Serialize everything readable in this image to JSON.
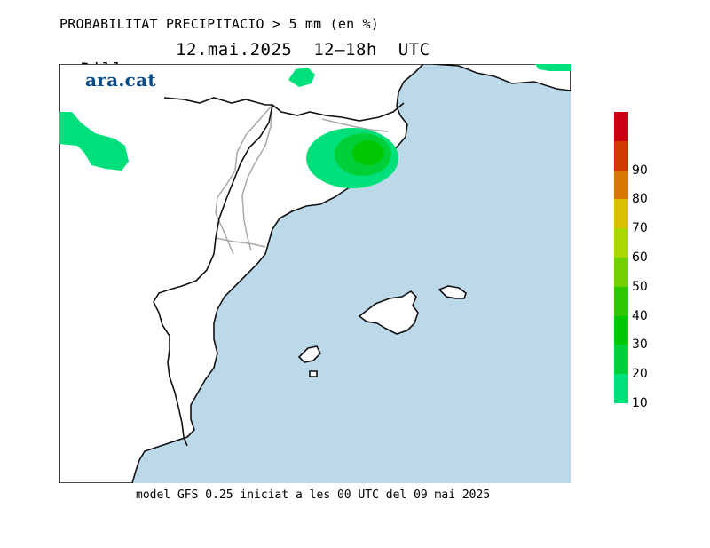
{
  "header": {
    "title": "PROBABILITAT PRECIPITACIO > 5 mm (en %)",
    "day": "Dilluns",
    "date_range": "12.mai.2025  12–18h  UTC"
  },
  "logo": {
    "text": "ara.cat"
  },
  "footer": {
    "text": "model GFS 0.25 iniciat a les 00 UTC del 09 mai 2025"
  },
  "map": {
    "sea_color": "#bcd9ea",
    "land_color": "#ffffff",
    "region": "Catalunya, País Valencià i Illes Balears"
  },
  "colorbar": {
    "ticks": [
      "10",
      "20",
      "30",
      "40",
      "50",
      "60",
      "70",
      "80",
      "90"
    ],
    "colors": [
      "#00e07a",
      "#00d038",
      "#00c800",
      "#2ec800",
      "#72d000",
      "#a8d800",
      "#d8c000",
      "#d87800",
      "#d03c00",
      "#c80010"
    ]
  }
}
